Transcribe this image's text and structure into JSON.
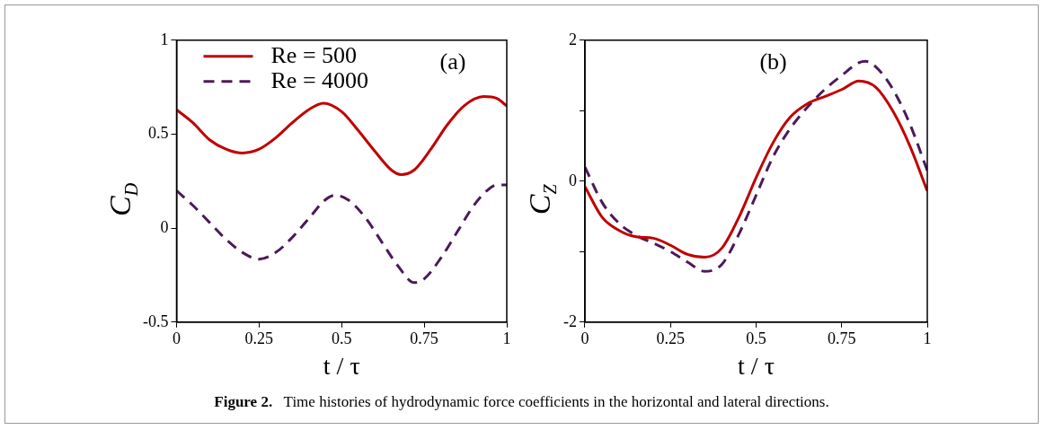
{
  "chart_data": [
    {
      "type": "line",
      "xlabel": "t / τ",
      "ylabel": "C$_{D}$",
      "xlim": [
        0,
        1
      ],
      "ylim": [
        -0.5,
        1
      ],
      "xticks": [
        0,
        0.25,
        0.5,
        0.75,
        1
      ],
      "yticks": [
        -0.5,
        0,
        0.5,
        1
      ],
      "grid": false,
      "legend": "top left",
      "marker": "none",
      "annotations": [
        "(a)",
        "Figure 2.",
        "Time histories of hydrodynamic force coefficients in the horizontal and lateral directions."
      ],
      "series": [
        {
          "name": "Re = 500",
          "color": "#c00000",
          "line_style": "solid",
          "x": [
            0,
            0.05,
            0.1,
            0.15,
            0.2,
            0.25,
            0.3,
            0.35,
            0.4,
            0.445,
            0.5,
            0.55,
            0.6,
            0.65,
            0.68,
            0.72,
            0.77,
            0.82,
            0.87,
            0.93,
            0.97,
            1
          ],
          "values": [
            0.63,
            0.56,
            0.47,
            0.42,
            0.4,
            0.42,
            0.48,
            0.56,
            0.63,
            0.665,
            0.62,
            0.52,
            0.41,
            0.31,
            0.285,
            0.31,
            0.42,
            0.55,
            0.65,
            0.7,
            0.69,
            0.65
          ]
        },
        {
          "name": "Re = 4000",
          "color": "#4b1a5a",
          "line_style": "dashed",
          "x": [
            0,
            0.05,
            0.1,
            0.15,
            0.2,
            0.25,
            0.3,
            0.35,
            0.4,
            0.45,
            0.48,
            0.52,
            0.57,
            0.62,
            0.67,
            0.72,
            0.75,
            0.8,
            0.85,
            0.9,
            0.94,
            0.97,
            1
          ],
          "values": [
            0.2,
            0.12,
            0.03,
            -0.06,
            -0.13,
            -0.165,
            -0.13,
            -0.05,
            0.05,
            0.15,
            0.175,
            0.15,
            0.06,
            -0.07,
            -0.2,
            -0.29,
            -0.27,
            -0.16,
            -0.02,
            0.12,
            0.2,
            0.23,
            0.23
          ]
        }
      ]
    },
    {
      "type": "line",
      "xlabel": "t / τ",
      "ylabel": "C$_{Z}$",
      "xlim": [
        0,
        1
      ],
      "ylim": [
        -2,
        2
      ],
      "xticks": [
        0,
        0.25,
        0.5,
        0.75,
        1
      ],
      "yticks": [
        -2,
        {
          "value": -1,
          "label": null
        },
        0,
        {
          "value": 1,
          "label": null
        },
        2
      ],
      "grid": false,
      "marker": "none",
      "annotations": [
        "(b)"
      ],
      "series": [
        {
          "color": "#c00000",
          "line_style": "solid",
          "x": [
            0,
            0.05,
            0.1,
            0.15,
            0.2,
            0.25,
            0.3,
            0.35,
            0.4,
            0.45,
            0.5,
            0.55,
            0.6,
            0.65,
            0.7,
            0.75,
            0.8,
            0.85,
            0.9,
            0.95,
            1
          ],
          "values": [
            -0.08,
            -0.51,
            -0.7,
            -0.79,
            -0.81,
            -0.91,
            -1.04,
            -1.08,
            -0.95,
            -0.51,
            0.05,
            0.55,
            0.91,
            1.1,
            1.2,
            1.3,
            1.42,
            1.33,
            0.99,
            0.49,
            -0.14
          ]
        },
        {
          "color": "#4b1a5a",
          "line_style": "dashed",
          "x": [
            0,
            0.05,
            0.1,
            0.15,
            0.2,
            0.25,
            0.3,
            0.35,
            0.4,
            0.45,
            0.5,
            0.55,
            0.6,
            0.65,
            0.7,
            0.75,
            0.8,
            0.82,
            0.85,
            0.9,
            0.95,
            1
          ],
          "values": [
            0.2,
            -0.3,
            -0.6,
            -0.77,
            -0.88,
            -1.0,
            -1.15,
            -1.28,
            -1.18,
            -0.75,
            -0.2,
            0.35,
            0.75,
            1.05,
            1.3,
            1.5,
            1.68,
            1.7,
            1.62,
            1.3,
            0.8,
            0.15
          ]
        }
      ]
    }
  ]
}
